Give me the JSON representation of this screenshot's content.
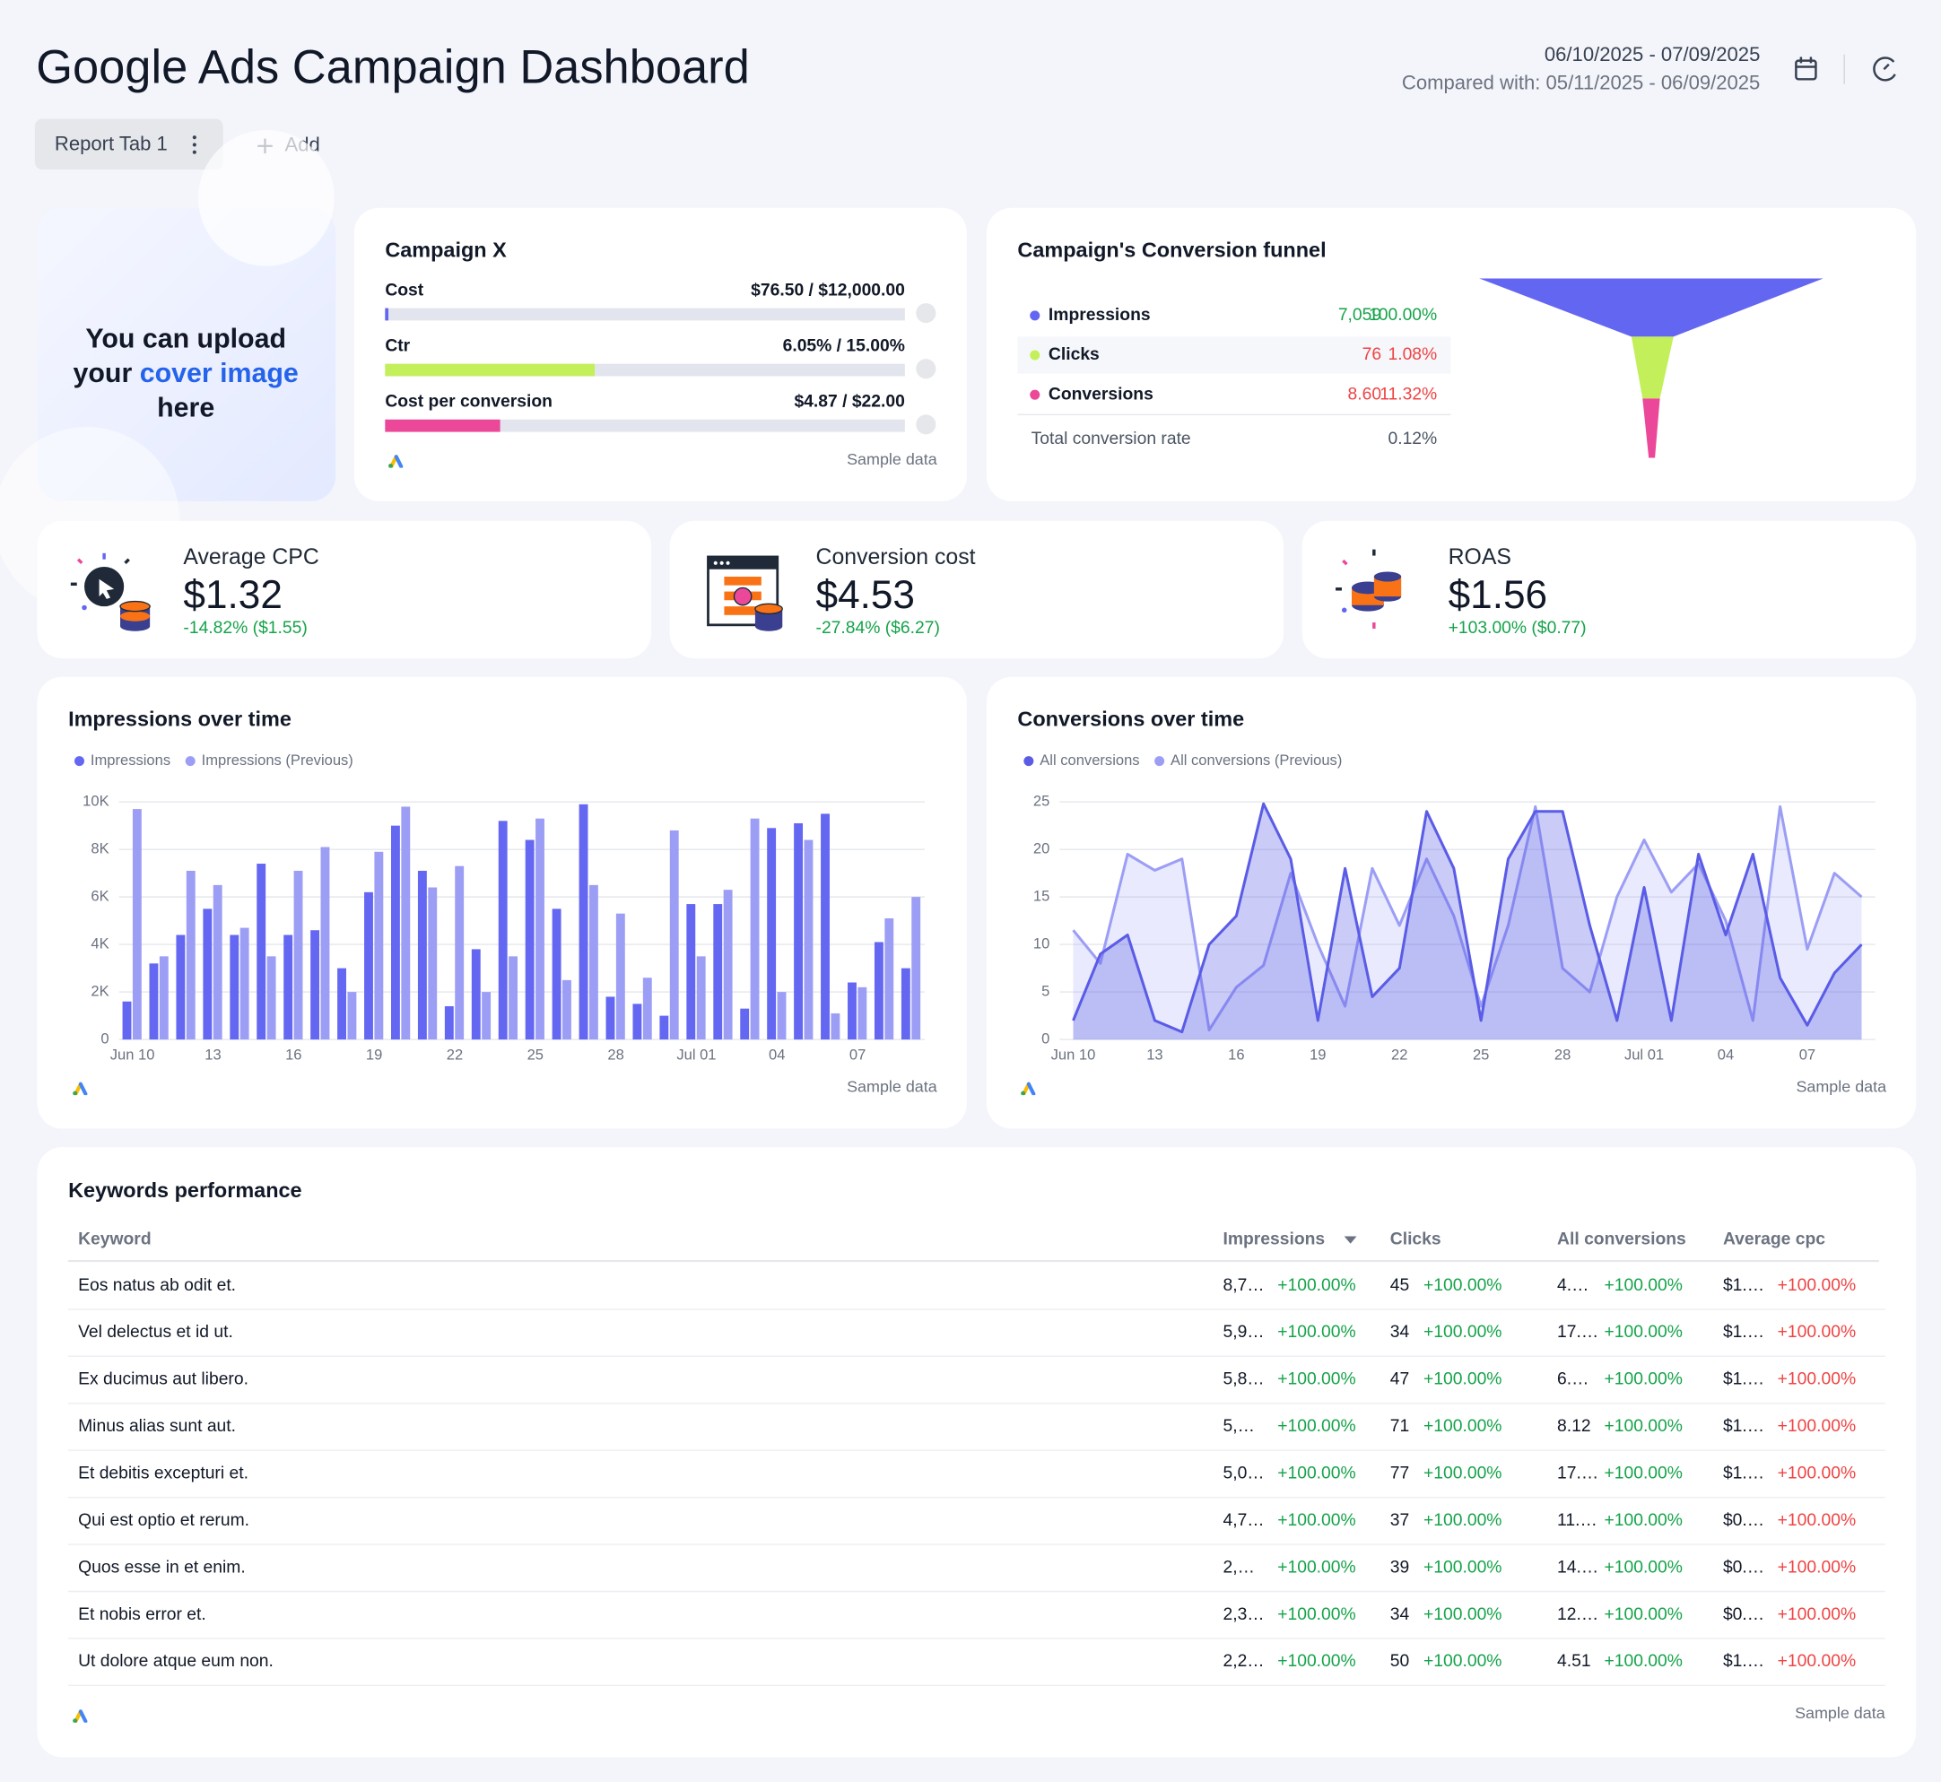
{
  "header": {
    "title": "Google Ads Campaign Dashboard",
    "date_range": "06/10/2025 - 07/09/2025",
    "compared": "Compared with: 05/11/2025 - 06/09/2025",
    "tab": "Report Tab 1",
    "add": "Add"
  },
  "cover": {
    "line1": "You can upload",
    "line2": "your",
    "link": "cover image",
    "line3": "here"
  },
  "campaign": {
    "title": "Campaign X",
    "footer": "Sample data",
    "metrics": [
      {
        "name": "Cost",
        "value": 76.5,
        "target": 12000,
        "label": "$76.50 / $12,000.00",
        "color": "#6366f1"
      },
      {
        "name": "Ctr",
        "value": 6.05,
        "target": 15,
        "label": "6.05% / 15.00%",
        "color": "#c3f05a"
      },
      {
        "name": "Cost per conversion",
        "value": 4.87,
        "target": 22,
        "label": "$4.87 / $22.00",
        "color": "#ec4899"
      }
    ]
  },
  "funnel": {
    "title": "Campaign's Conversion funnel",
    "stages": [
      {
        "name": "Impressions",
        "value": "7,059",
        "percent": "100.00%",
        "color": "#6366f1",
        "value_color": "#16a34a"
      },
      {
        "name": "Clicks",
        "value": "76",
        "percent": "1.08%",
        "color": "#c3f05a",
        "value_color": "#ef4444"
      },
      {
        "name": "Conversions",
        "value": "8.60",
        "percent": "11.32%",
        "color": "#ec4899",
        "value_color": "#ef4444"
      }
    ],
    "total_label": "Total conversion rate",
    "total": "0.12%"
  },
  "kpis": [
    {
      "title": "Average CPC",
      "value": "$1.32",
      "change": "-14.82% ($1.55)"
    },
    {
      "title": "Conversion cost",
      "value": "$4.53",
      "change": "-27.84% ($6.27)"
    },
    {
      "title": "ROAS",
      "value": "$1.56",
      "change": "+103.00% ($0.77)"
    }
  ],
  "chart_data": [
    {
      "type": "bar",
      "title": "Impressions over time",
      "footer": "Sample data",
      "categories": [
        "Jun 10",
        null,
        null,
        "13",
        null,
        null,
        "16",
        null,
        null,
        "19",
        null,
        null,
        "22",
        null,
        null,
        "25",
        null,
        null,
        "28",
        null,
        null,
        "Jul 01",
        null,
        null,
        "04",
        null,
        null,
        "07",
        null,
        null
      ],
      "series": [
        {
          "name": "Impressions",
          "color": "#6467f2",
          "values": [
            1600,
            3200,
            4400,
            5500,
            4400,
            7400,
            4400,
            4600,
            3000,
            6200,
            9000,
            7100,
            1400,
            3800,
            9200,
            8400,
            5500,
            9900,
            1800,
            1500,
            1000,
            5700,
            5700,
            1300,
            8900,
            9100,
            9500,
            2400,
            4100,
            3000
          ]
        },
        {
          "name": "Impressions (Previous)",
          "color": "#9c9ef5",
          "values": [
            9700,
            3500,
            7100,
            6500,
            4700,
            3500,
            7100,
            8100,
            2000,
            7900,
            9800,
            6400,
            7300,
            2000,
            3500,
            9300,
            2500,
            6500,
            5300,
            2600,
            8800,
            3500,
            6300,
            9300,
            2000,
            8400,
            1100,
            2200,
            5100,
            6000
          ]
        }
      ],
      "ylim": [
        0,
        10000
      ],
      "yticks": [
        0,
        {
          "value": 2000,
          "label": "2K"
        },
        {
          "value": 4000,
          "label": "4K"
        },
        {
          "value": 6000,
          "label": "6K"
        },
        {
          "value": 8000,
          "label": "8K"
        },
        {
          "value": 10000,
          "label": "10K"
        }
      ],
      "grid": true
    },
    {
      "type": "area",
      "title": "Conversions over time",
      "footer": "Sample data",
      "categories": [
        "Jun 10",
        null,
        null,
        "13",
        null,
        null,
        "16",
        null,
        null,
        "19",
        null,
        null,
        "22",
        null,
        null,
        "25",
        null,
        null,
        "28",
        null,
        null,
        "Jul 01",
        null,
        null,
        "04",
        null,
        null,
        "07",
        null,
        null
      ],
      "series": [
        {
          "name": "All conversions",
          "color": "#5a5ce6",
          "values": [
            2,
            9,
            11,
            2,
            0.8,
            10,
            13,
            24.8,
            19,
            2,
            18,
            4.5,
            7.5,
            24,
            18,
            2,
            19,
            24,
            24,
            12,
            2,
            16,
            2,
            19.5,
            11,
            19.5,
            6.5,
            1.5,
            7,
            10
          ]
        },
        {
          "name": "All conversions (Previous)",
          "color": "#9c9ef5",
          "values": [
            11.5,
            8,
            19.5,
            17.8,
            19,
            1,
            5.5,
            7.8,
            17.5,
            10,
            3.5,
            18,
            12,
            19,
            13,
            3.5,
            12,
            24.5,
            7.5,
            5,
            15,
            21,
            15.5,
            18.5,
            12.5,
            2,
            24.5,
            9.5,
            17.5,
            15
          ]
        }
      ],
      "ylim": [
        0,
        25
      ],
      "yticks": [
        0,
        5,
        10,
        15,
        20,
        25
      ],
      "grid": true
    }
  ],
  "keywords": {
    "title": "Keywords performance",
    "footer": "Sample data",
    "columns": [
      "Keyword",
      "Impressions",
      "Clicks",
      "All conversions",
      "Average cpc"
    ],
    "rows": [
      [
        "Eos natus ab odit et.",
        "8,7…",
        "+100.00%",
        "45",
        "+100.00%",
        "4.…",
        "+100.00%",
        "$1.…",
        "+100.00%"
      ],
      [
        "Vel delectus et id ut.",
        "5,9…",
        "+100.00%",
        "34",
        "+100.00%",
        "17.…",
        "+100.00%",
        "$1.…",
        "+100.00%"
      ],
      [
        "Ex ducimus aut libero.",
        "5,8…",
        "+100.00%",
        "47",
        "+100.00%",
        "6.…",
        "+100.00%",
        "$1.…",
        "+100.00%"
      ],
      [
        "Minus alias sunt aut.",
        "5,…",
        "+100.00%",
        "71",
        "+100.00%",
        "8.12",
        "+100.00%",
        "$1.…",
        "+100.00%"
      ],
      [
        "Et debitis excepturi et.",
        "5,0…",
        "+100.00%",
        "77",
        "+100.00%",
        "17.…",
        "+100.00%",
        "$1.…",
        "+100.00%"
      ],
      [
        "Qui est optio et rerum.",
        "4,7…",
        "+100.00%",
        "37",
        "+100.00%",
        "11.…",
        "+100.00%",
        "$0.…",
        "+100.00%"
      ],
      [
        "Quos esse in et enim.",
        "2,…",
        "+100.00%",
        "39",
        "+100.00%",
        "14.…",
        "+100.00%",
        "$0.…",
        "+100.00%"
      ],
      [
        "Et nobis error et.",
        "2,3…",
        "+100.00%",
        "34",
        "+100.00%",
        "12.…",
        "+100.00%",
        "$0.…",
        "+100.00%"
      ],
      [
        "Ut dolore atque eum non.",
        "2,2…",
        "+100.00%",
        "50",
        "+100.00%",
        "4.51",
        "+100.00%",
        "$1.…",
        "+100.00%"
      ]
    ]
  }
}
